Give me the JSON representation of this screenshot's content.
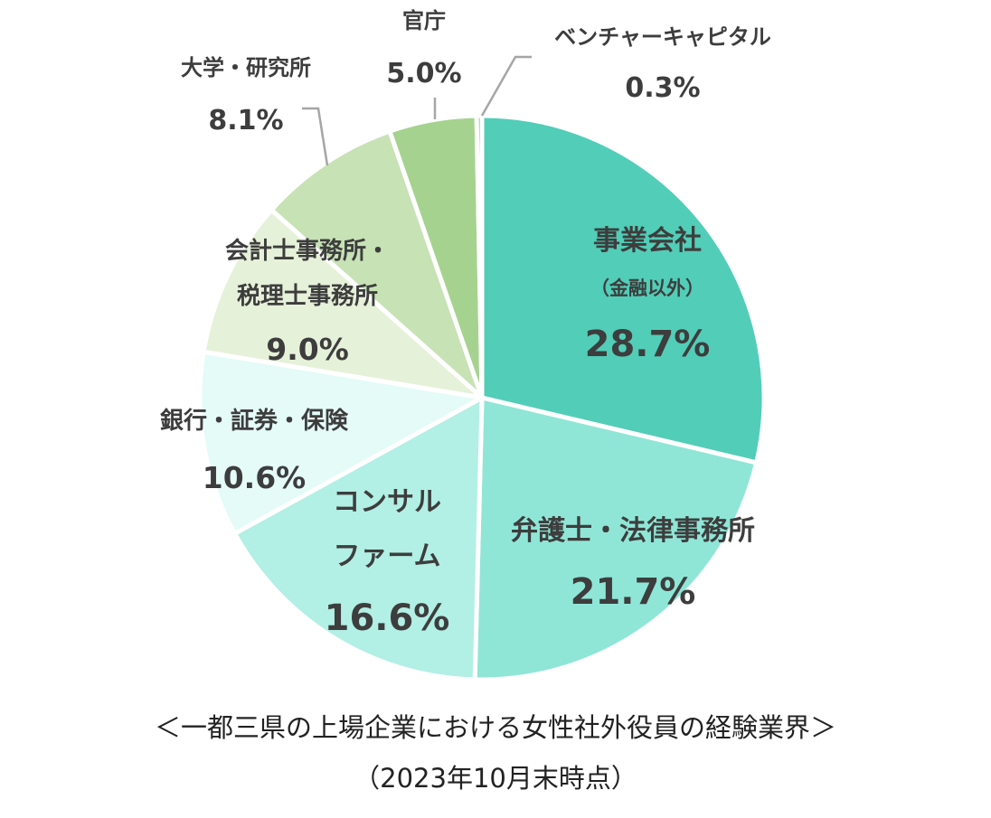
{
  "chart_data": {
    "type": "pie",
    "slices": [
      {
        "name": "事業会社",
        "note": "（金融以外）",
        "value": 28.7,
        "label": "28.7%",
        "color": "#52cdb8"
      },
      {
        "name": "弁護士・法律事務所",
        "value": 21.7,
        "label": "21.7%",
        "color": "#8fe6d7"
      },
      {
        "name": "コンサル ファーム",
        "name_lines": [
          "コンサル",
          "ファーム"
        ],
        "value": 16.6,
        "label": "16.6%",
        "color": "#b2efe5"
      },
      {
        "name": "銀行・証券・保険",
        "value": 10.6,
        "label": "10.6%",
        "color": "#e4fbf7"
      },
      {
        "name": "会計士事務所・税理士事務所",
        "name_lines": [
          "会計士事務所・",
          "税理士事務所"
        ],
        "value": 9.0,
        "label": "9.0%",
        "color": "#e6f1d9"
      },
      {
        "name": "大学・研究所",
        "value": 8.1,
        "label": "8.1%",
        "color": "#c7e2b5"
      },
      {
        "name": "官庁",
        "value": 5.0,
        "label": "5.0%",
        "color": "#a6d290"
      },
      {
        "name": "ベンチャーキャピタル",
        "value": 0.3,
        "label": "0.3%",
        "color": "#80bf6a"
      }
    ]
  },
  "caption": {
    "line1": "＜一都三県の上場企業における女性社外役員の経験業界＞",
    "line2": "（2023年10月末時点）"
  }
}
